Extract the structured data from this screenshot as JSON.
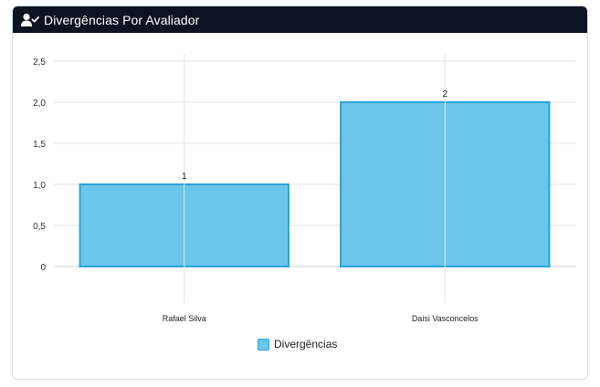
{
  "header": {
    "title": "Divergências Por Avaliador",
    "icon": "user-check-icon"
  },
  "chart_data": {
    "type": "bar",
    "categories": [
      "Rafael Silva",
      "Daisi Vasconcelos"
    ],
    "series": [
      {
        "name": "Divergências",
        "values": [
          1,
          2
        ]
      }
    ],
    "data_labels": [
      "1",
      "2"
    ],
    "ylim": [
      0,
      2.5
    ],
    "yticks": [
      0,
      0.5,
      1.0,
      1.5,
      2.0,
      2.5
    ],
    "ytick_labels": [
      "0",
      "0,5",
      "1,0",
      "1,5",
      "2,0",
      "2,5"
    ],
    "grid": true,
    "legend_position": "bottom",
    "colors": {
      "fill": "#6ac6ea",
      "stroke": "#2aa3d8",
      "grid": "#e3e3e3"
    }
  }
}
